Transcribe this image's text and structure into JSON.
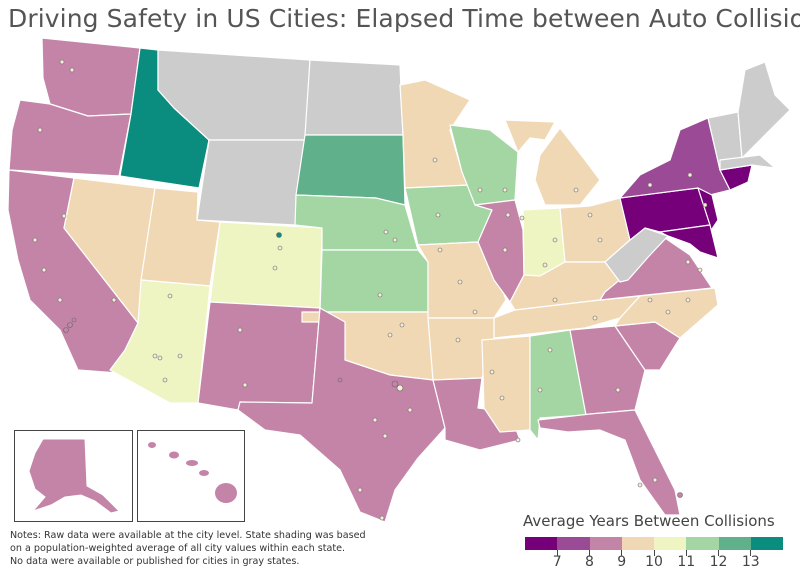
{
  "title": "Driving Safety in US Cities: Elapsed Time between Auto Collisions",
  "notes": [
    "Notes: Raw data were available at the city level. State shading was based",
    "on a population-weighted average of all city values within each state.",
    "No data were available or published for cities in gray states."
  ],
  "legend": {
    "title": "Average Years Between Collisions",
    "labels": [
      "7",
      "8",
      "9",
      "10",
      "11",
      "12",
      "13"
    ],
    "colors": [
      "#75007a",
      "#9b4a96",
      "#c484a8",
      "#f0d8b4",
      "#eef5c2",
      "#a4d6a4",
      "#61b08c",
      "#0a8d7e"
    ]
  },
  "palette": {
    "no_data": "#cccccc",
    "c7": "#75007a",
    "c8": "#9b4a96",
    "c9": "#c484a8",
    "c10": "#f0d8b4",
    "c11": "#eef5c2",
    "c12": "#a4d6a4",
    "c12b": "#61b08c",
    "c13": "#0a8d7e"
  }
}
